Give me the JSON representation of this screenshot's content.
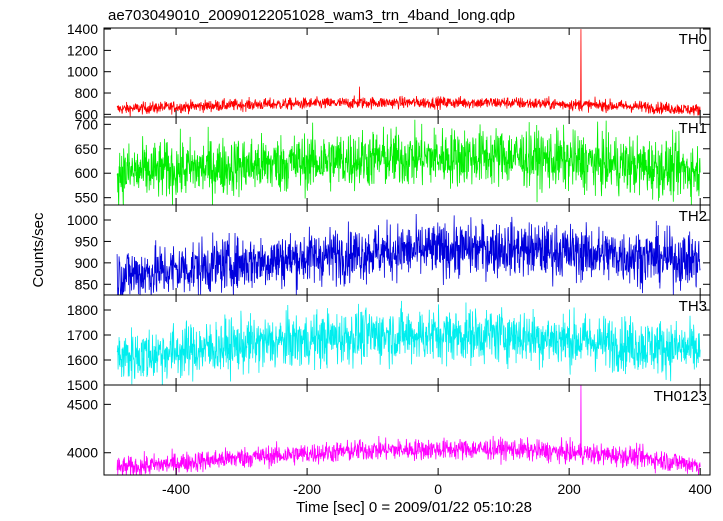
{
  "chart_data": {
    "type": "line",
    "title": "ae703049010_20090122051028_wam3_trn_4band_long.qdp",
    "xlabel": "Time [sec] 0 = 2009/01/22 05:10:28",
    "ylabel": "Counts/sec",
    "xlim": [
      -510,
      415
    ],
    "xticks": [
      -400,
      -200,
      0,
      200,
      400
    ],
    "grid": false,
    "panels": [
      {
        "name": "TH0",
        "color": "#ff0000",
        "ylim": [
          575,
          1410
        ],
        "yticks": [
          600,
          800,
          1000,
          1200,
          1400
        ],
        "baseline": [
          [
            -490,
            650
          ],
          [
            -300,
            690
          ],
          [
            -100,
            710
          ],
          [
            100,
            710
          ],
          [
            300,
            675
          ],
          [
            400,
            640
          ]
        ],
        "noise": 28,
        "spikes": [
          [
            -120,
            860
          ],
          [
            218,
            1400
          ]
        ]
      },
      {
        "name": "TH1",
        "color": "#00ee00",
        "ylim": [
          535,
          715
        ],
        "yticks": [
          550,
          600,
          650,
          700
        ],
        "baseline": [
          [
            -490,
            600
          ],
          [
            -300,
            615
          ],
          [
            -100,
            630
          ],
          [
            100,
            635
          ],
          [
            300,
            615
          ],
          [
            400,
            605
          ]
        ],
        "noise": 30,
        "spikes": []
      },
      {
        "name": "TH2",
        "color": "#0000dd",
        "ylim": [
          825,
          1035
        ],
        "yticks": [
          850,
          900,
          950,
          1000
        ],
        "baseline": [
          [
            -490,
            870
          ],
          [
            -300,
            900
          ],
          [
            -100,
            925
          ],
          [
            100,
            935
          ],
          [
            300,
            915
          ],
          [
            400,
            905
          ]
        ],
        "noise": 32,
        "spikes": []
      },
      {
        "name": "TH3",
        "color": "#00eeee",
        "ylim": [
          1500,
          1860
        ],
        "yticks": [
          1500,
          1600,
          1700,
          1800
        ],
        "baseline": [
          [
            -490,
            1610
          ],
          [
            -300,
            1660
          ],
          [
            -100,
            1700
          ],
          [
            100,
            1700
          ],
          [
            300,
            1660
          ],
          [
            400,
            1640
          ]
        ],
        "noise": 55,
        "spikes": []
      },
      {
        "name": "TH0123",
        "color": "#ff00ff",
        "ylim": [
          3770,
          4700
        ],
        "yticks": [
          4000,
          4500
        ],
        "baseline": [
          [
            -490,
            3840
          ],
          [
            -300,
            3950
          ],
          [
            -100,
            4030
          ],
          [
            100,
            4040
          ],
          [
            300,
            3960
          ],
          [
            400,
            3870
          ]
        ],
        "noise": 55,
        "spikes": [
          [
            -120,
            4130
          ],
          [
            218,
            4700
          ]
        ]
      }
    ]
  }
}
